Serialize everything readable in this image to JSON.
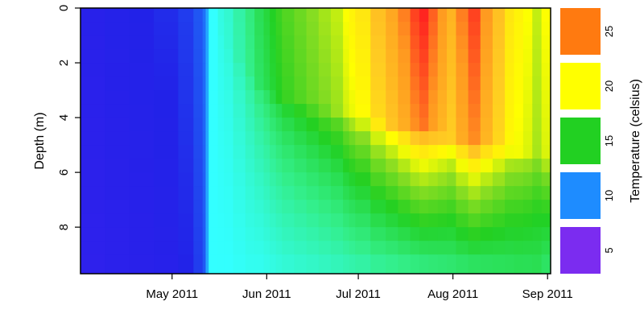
{
  "chart_data": {
    "type": "heatmap",
    "title": "",
    "xlabel": "",
    "ylabel": "Depth (m)",
    "x_ticks": [
      {
        "value": 30,
        "label": "May 2011"
      },
      {
        "value": 61,
        "label": "Jun 2011"
      },
      {
        "value": 91,
        "label": "Jul 2011"
      },
      {
        "value": 122,
        "label": "Aug 2011"
      },
      {
        "value": 153,
        "label": "Sep 2011"
      }
    ],
    "xlim_days_since_apr1": [
      0,
      154
    ],
    "ylim": [
      0,
      9.7
    ],
    "y_axis_reversed": true,
    "y_ticks": [
      0,
      2,
      4,
      6,
      8
    ],
    "legend": {
      "title": "Temperature (celsius)",
      "ticks": [
        5,
        10,
        15,
        20,
        25
      ],
      "bins": [
        {
          "range": [
            2.5,
            7.5
          ],
          "color": "#7b2cf0"
        },
        {
          "range": [
            7.5,
            12.5
          ],
          "color": "#1e8cff"
        },
        {
          "range": [
            12.5,
            17.5
          ],
          "color": "#22d022"
        },
        {
          "range": [
            17.5,
            22.5
          ],
          "color": "#ffff00"
        },
        {
          "range": [
            22.5,
            27.5
          ],
          "color": "#ff7a10"
        }
      ]
    },
    "colormap": [
      {
        "t": 3,
        "color": "#7b2cf0"
      },
      {
        "t": 6,
        "color": "#3a1ff0"
      },
      {
        "t": 8,
        "color": "#2222e8"
      },
      {
        "t": 10,
        "color": "#1e8cff"
      },
      {
        "t": 12,
        "color": "#33ffff"
      },
      {
        "t": 14,
        "color": "#33ee88"
      },
      {
        "t": 16,
        "color": "#22d022"
      },
      {
        "t": 18,
        "color": "#88dd22"
      },
      {
        "t": 20,
        "color": "#ffff00"
      },
      {
        "t": 22,
        "color": "#ffcc22"
      },
      {
        "t": 24,
        "color": "#ff9a20"
      },
      {
        "t": 26,
        "color": "#ff2020"
      }
    ],
    "day_values": [
      0,
      8,
      16,
      24,
      32,
      37,
      40,
      41,
      42,
      45,
      47,
      50,
      54,
      57,
      60,
      62,
      64,
      66,
      70,
      74,
      78,
      82,
      86,
      88,
      90,
      95,
      100,
      104,
      108,
      111,
      114,
      117,
      120,
      123,
      127,
      131,
      135,
      139,
      142,
      145,
      148,
      151,
      154
    ],
    "depth_values": [
      0,
      0.5,
      1,
      1.5,
      2,
      2.5,
      3,
      3.5,
      4,
      4.5,
      5,
      5.5,
      6,
      6.5,
      7,
      7.5,
      8,
      8.5,
      9,
      9.7
    ],
    "surface_temperature": [
      7.5,
      7.8,
      8.0,
      8.2,
      8.5,
      9.0,
      9.5,
      10.5,
      12.0,
      12.5,
      12.8,
      13.5,
      14.2,
      15.0,
      15.5,
      16.0,
      16.5,
      17.0,
      17.5,
      18.0,
      18.5,
      19.0,
      20.0,
      20.5,
      21.0,
      22.5,
      23.5,
      24.5,
      25.5,
      26.0,
      25.0,
      24.0,
      23.0,
      24.5,
      25.5,
      24.0,
      22.5,
      21.0,
      20.5,
      20.0,
      19.0,
      20.0,
      20.0
    ],
    "bottom_temperature": [
      7.0,
      7.2,
      7.4,
      7.6,
      8.0,
      8.5,
      9.0,
      10.5,
      12.0,
      12.0,
      12.0,
      12.1,
      12.2,
      12.2,
      12.3,
      12.4,
      12.5,
      12.6,
      12.7,
      12.8,
      12.9,
      13.0,
      13.1,
      13.2,
      13.3,
      13.5,
      13.6,
      13.7,
      13.8,
      13.9,
      14.0,
      14.1,
      14.2,
      14.3,
      14.4,
      14.5,
      14.6,
      14.7,
      14.8,
      14.8,
      14.9,
      14.5,
      14.5
    ],
    "thermocline_depth_m": [
      0,
      0,
      0,
      0,
      0,
      0,
      0,
      0,
      0.5,
      1.0,
      1.5,
      2.0,
      2.5,
      2.8,
      3.0,
      3.2,
      3.3,
      3.4,
      3.5,
      3.6,
      3.7,
      3.8,
      3.9,
      4.0,
      4.1,
      4.2,
      4.3,
      4.4,
      4.5,
      4.5,
      4.6,
      4.7,
      4.8,
      4.9,
      5.0,
      5.0,
      5.1,
      5.2,
      5.3,
      5.4,
      5.5,
      5.6,
      5.6
    ]
  }
}
